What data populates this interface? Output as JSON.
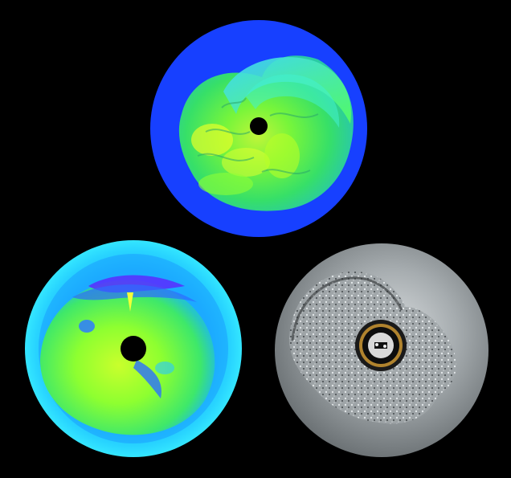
{
  "panels": [
    {
      "id": "top",
      "description_key": "simulation-top"
    },
    {
      "id": "bottom-left",
      "description_key": "simulation-bottom-left"
    },
    {
      "id": "bottom-right",
      "description_key": "photograph-bottom-right"
    }
  ],
  "colors": {
    "background": "#000000",
    "disk_blue": "#1740ff",
    "field_green": "#3cff3c",
    "field_yellow": "#d8ff2a",
    "field_cyan": "#22c8ff",
    "photo_gray": "#9aa0a4"
  }
}
